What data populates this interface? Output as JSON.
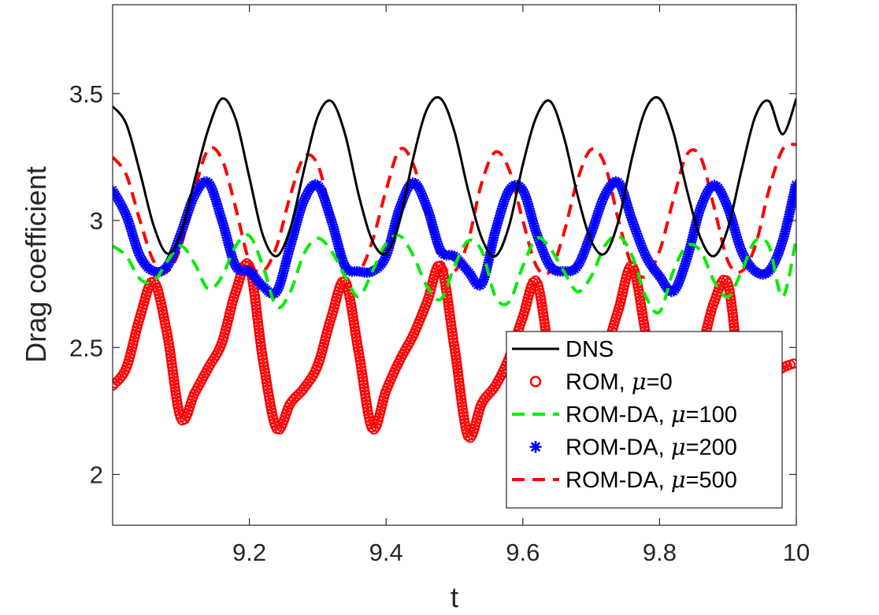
{
  "chart_data": {
    "type": "line",
    "title": "",
    "xlabel": "t",
    "ylabel": "Drag coefficient",
    "xlim": [
      9.0,
      10.0
    ],
    "ylim": [
      1.8,
      3.85
    ],
    "xticks": [
      9.2,
      9.4,
      9.6,
      9.8,
      10
    ],
    "xtick_labels": [
      "9.2",
      "9.4",
      "9.6",
      "9.8",
      "10"
    ],
    "yticks": [
      2,
      2.5,
      3,
      3.5
    ],
    "ytick_labels": [
      "2",
      "2.5",
      "3",
      "3.5"
    ],
    "grid": false,
    "legend_position": "bottom-right",
    "series": [
      {
        "name": "DNS",
        "legend_prefix": "DNS",
        "legend_mu": "",
        "legend_suffix": "",
        "style": "solid",
        "color": "#000000",
        "x": [
          9.0,
          9.02,
          9.04,
          9.06,
          9.08,
          9.1,
          9.12,
          9.14,
          9.16,
          9.18,
          9.2,
          9.22,
          9.24,
          9.26,
          9.28,
          9.3,
          9.32,
          9.34,
          9.36,
          9.38,
          9.4,
          9.42,
          9.44,
          9.46,
          9.48,
          9.5,
          9.52,
          9.54,
          9.56,
          9.58,
          9.6,
          9.62,
          9.64,
          9.66,
          9.68,
          9.7,
          9.72,
          9.74,
          9.76,
          9.78,
          9.8,
          9.82,
          9.84,
          9.86,
          9.88,
          9.9,
          9.92,
          9.94,
          9.96,
          9.98,
          10.0
        ],
        "y": [
          3.45,
          3.38,
          3.19,
          2.98,
          2.87,
          2.95,
          3.16,
          3.36,
          3.48,
          3.4,
          3.17,
          2.94,
          2.86,
          2.97,
          3.2,
          3.41,
          3.47,
          3.34,
          3.1,
          2.92,
          2.87,
          3.0,
          3.25,
          3.44,
          3.48,
          3.35,
          3.12,
          2.93,
          2.86,
          2.98,
          3.22,
          3.41,
          3.47,
          3.33,
          3.1,
          2.92,
          2.87,
          3.0,
          3.25,
          3.44,
          3.48,
          3.35,
          3.12,
          2.93,
          2.86,
          2.97,
          3.2,
          3.41,
          3.47,
          3.34,
          3.48
        ]
      },
      {
        "name": "ROM, μ=0",
        "legend_prefix": "ROM, ",
        "legend_mu": "μ",
        "legend_suffix": "=0",
        "style": "circle-markers",
        "color": "#ff0000",
        "x": [
          9.0,
          9.02,
          9.04,
          9.06,
          9.08,
          9.1,
          9.12,
          9.14,
          9.16,
          9.18,
          9.2,
          9.22,
          9.24,
          9.26,
          9.28,
          9.3,
          9.32,
          9.34,
          9.36,
          9.38,
          9.4,
          9.42,
          9.44,
          9.46,
          9.48,
          9.5,
          9.52,
          9.54,
          9.56,
          9.58,
          9.6,
          9.62,
          9.64,
          9.66,
          9.68,
          9.7,
          9.72,
          9.74,
          9.76,
          9.78,
          9.8,
          9.82,
          9.84,
          9.86,
          9.88,
          9.9,
          9.92,
          9.94,
          9.96,
          9.98,
          10.0
        ],
        "y": [
          2.35,
          2.42,
          2.62,
          2.76,
          2.55,
          2.22,
          2.32,
          2.42,
          2.52,
          2.72,
          2.82,
          2.45,
          2.18,
          2.28,
          2.34,
          2.43,
          2.62,
          2.76,
          2.48,
          2.18,
          2.33,
          2.45,
          2.55,
          2.68,
          2.82,
          2.5,
          2.15,
          2.28,
          2.35,
          2.46,
          2.62,
          2.76,
          2.45,
          2.2,
          2.3,
          2.38,
          2.48,
          2.65,
          2.82,
          2.55,
          2.25,
          2.3,
          2.35,
          2.48,
          2.68,
          2.75,
          2.35,
          2.35,
          2.38,
          2.42,
          2.44
        ]
      },
      {
        "name": "ROM-DA, μ=100",
        "legend_prefix": "ROM-DA, ",
        "legend_mu": "μ",
        "legend_suffix": "=100",
        "style": "dashed",
        "color": "#00ee00",
        "x": [
          9.0,
          9.02,
          9.04,
          9.06,
          9.08,
          9.1,
          9.12,
          9.14,
          9.16,
          9.18,
          9.2,
          9.22,
          9.24,
          9.26,
          9.28,
          9.3,
          9.32,
          9.34,
          9.36,
          9.38,
          9.4,
          9.42,
          9.44,
          9.46,
          9.48,
          9.5,
          9.52,
          9.54,
          9.56,
          9.58,
          9.6,
          9.62,
          9.64,
          9.66,
          9.68,
          9.7,
          9.72,
          9.74,
          9.76,
          9.78,
          9.8,
          9.82,
          9.84,
          9.86,
          9.88,
          9.9,
          9.92,
          9.94,
          9.96,
          9.98,
          10.0
        ],
        "y": [
          2.9,
          2.86,
          2.77,
          2.76,
          2.84,
          2.9,
          2.83,
          2.73,
          2.78,
          2.9,
          2.94,
          2.82,
          2.66,
          2.72,
          2.87,
          2.93,
          2.88,
          2.78,
          2.7,
          2.8,
          2.91,
          2.94,
          2.86,
          2.74,
          2.69,
          2.82,
          2.92,
          2.88,
          2.7,
          2.68,
          2.82,
          2.93,
          2.89,
          2.8,
          2.72,
          2.78,
          2.9,
          2.94,
          2.86,
          2.7,
          2.64,
          2.8,
          2.9,
          2.88,
          2.76,
          2.7,
          2.8,
          2.92,
          2.9,
          2.7,
          2.93
        ]
      },
      {
        "name": "ROM-DA, μ=200",
        "legend_prefix": "ROM-DA, ",
        "legend_mu": "μ",
        "legend_suffix": "=200",
        "style": "star-markers",
        "color": "#0000ff",
        "x": [
          9.0,
          9.02,
          9.04,
          9.06,
          9.08,
          9.1,
          9.12,
          9.14,
          9.16,
          9.18,
          9.2,
          9.22,
          9.24,
          9.26,
          9.28,
          9.3,
          9.32,
          9.34,
          9.36,
          9.38,
          9.4,
          9.42,
          9.44,
          9.46,
          9.48,
          9.5,
          9.52,
          9.54,
          9.56,
          9.58,
          9.6,
          9.62,
          9.64,
          9.66,
          9.68,
          9.7,
          9.72,
          9.74,
          9.76,
          9.78,
          9.8,
          9.82,
          9.84,
          9.86,
          9.88,
          9.9,
          9.92,
          9.94,
          9.96,
          9.98,
          10.0
        ],
        "y": [
          3.12,
          3.02,
          2.86,
          2.8,
          2.82,
          2.95,
          3.1,
          3.15,
          3.0,
          2.82,
          2.8,
          2.74,
          2.72,
          2.9,
          3.08,
          3.14,
          3.0,
          2.82,
          2.8,
          2.8,
          2.86,
          3.05,
          3.15,
          3.05,
          2.88,
          2.86,
          2.8,
          2.75,
          2.96,
          3.12,
          3.12,
          2.95,
          2.82,
          2.8,
          2.82,
          2.95,
          3.1,
          3.15,
          3.0,
          2.86,
          2.78,
          2.72,
          2.85,
          3.05,
          3.14,
          3.05,
          2.88,
          2.8,
          2.8,
          2.92,
          3.15
        ]
      },
      {
        "name": "ROM-DA, μ=500",
        "legend_prefix": "ROM-DA, ",
        "legend_mu": "μ",
        "legend_suffix": "=500",
        "style": "dashed",
        "color": "#ff0000",
        "x": [
          9.0,
          9.02,
          9.04,
          9.06,
          9.08,
          9.1,
          9.12,
          9.14,
          9.16,
          9.18,
          9.2,
          9.22,
          9.24,
          9.26,
          9.28,
          9.3,
          9.32,
          9.34,
          9.36,
          9.38,
          9.4,
          9.42,
          9.44,
          9.46,
          9.48,
          9.5,
          9.52,
          9.54,
          9.56,
          9.58,
          9.6,
          9.62,
          9.64,
          9.66,
          9.68,
          9.7,
          9.72,
          9.74,
          9.76,
          9.78,
          9.8,
          9.82,
          9.84,
          9.86,
          9.88,
          9.9,
          9.92,
          9.94,
          9.96,
          9.98,
          10.0
        ],
        "y": [
          3.25,
          3.18,
          3.0,
          2.84,
          2.8,
          2.9,
          3.12,
          3.28,
          3.24,
          3.05,
          2.84,
          2.8,
          2.9,
          3.1,
          3.25,
          3.22,
          3.02,
          2.84,
          2.8,
          2.92,
          3.12,
          3.28,
          3.22,
          3.02,
          2.84,
          2.8,
          2.92,
          3.15,
          3.27,
          3.2,
          3.0,
          2.82,
          2.8,
          2.95,
          3.16,
          3.28,
          3.22,
          3.0,
          2.82,
          2.78,
          2.88,
          3.08,
          3.26,
          3.25,
          3.05,
          2.84,
          2.8,
          2.9,
          3.12,
          3.28,
          3.3
        ]
      }
    ]
  }
}
